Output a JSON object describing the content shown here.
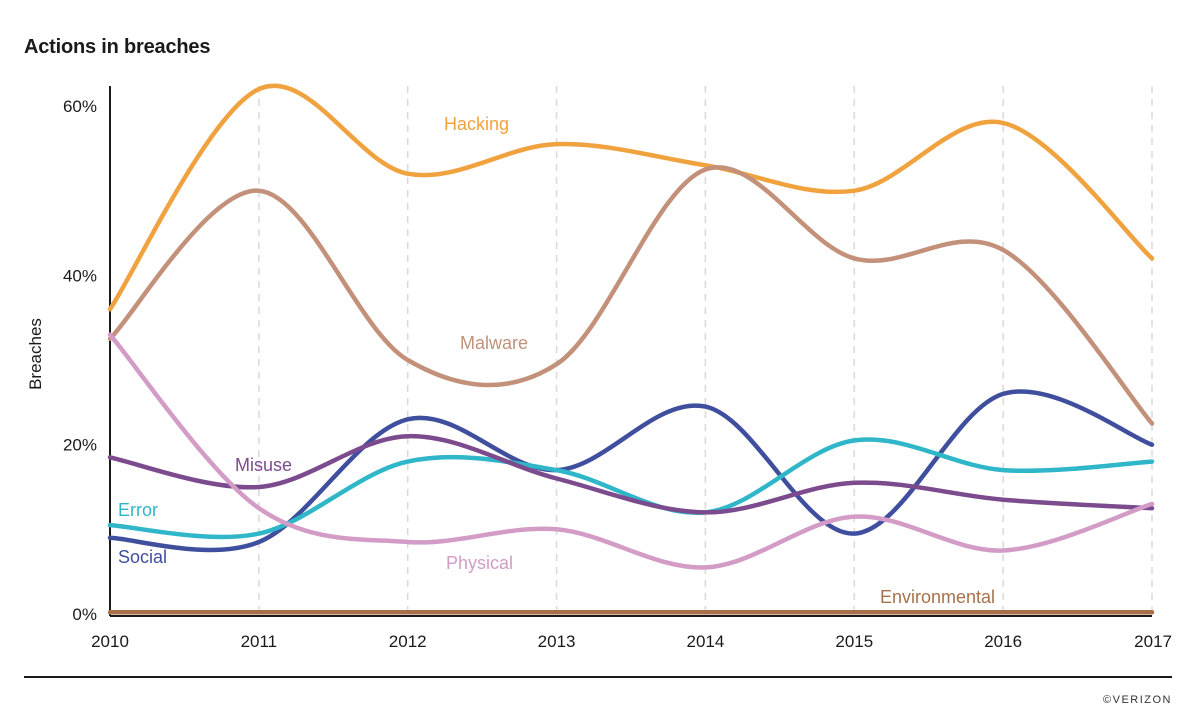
{
  "chart_data": {
    "type": "line",
    "title": "Actions in breaches",
    "xlabel": "",
    "ylabel": "Breaches",
    "x": [
      "2010",
      "2011",
      "2012",
      "2013",
      "2014",
      "2015",
      "2016",
      "2017"
    ],
    "ylim": [
      0,
      60
    ],
    "yticks": [
      0,
      20,
      40,
      60
    ],
    "ytick_labels": [
      "0%",
      "20%",
      "40%",
      "60%"
    ],
    "grid": "vertical dashed",
    "legend": "inline labels",
    "series": [
      {
        "name": "Hacking",
        "color": "#f0a23f",
        "values": [
          36,
          62,
          52,
          55.5,
          53,
          50,
          58,
          42
        ]
      },
      {
        "name": "Malware",
        "color": "#c3917a",
        "values": [
          32.5,
          50,
          30,
          29.5,
          52.5,
          42,
          43,
          22.5
        ]
      },
      {
        "name": "Social",
        "color": "#3f4f9e",
        "values": [
          9,
          8.5,
          23,
          17,
          24.5,
          9.5,
          26,
          20
        ]
      },
      {
        "name": "Error",
        "color": "#2fb6c8",
        "values": [
          10.5,
          9.5,
          18,
          17,
          12,
          20.5,
          17,
          18
        ]
      },
      {
        "name": "Misuse",
        "color": "#7b4b8e",
        "values": [
          18.5,
          15,
          21,
          16,
          12,
          15.5,
          13.5,
          12.5
        ]
      },
      {
        "name": "Physical",
        "color": "#d29cc6",
        "values": [
          33,
          12.5,
          8.5,
          10,
          5.5,
          11.5,
          7.5,
          13
        ]
      },
      {
        "name": "Environmental",
        "color": "#a7704a",
        "values": [
          0.2,
          0.2,
          0.2,
          0.2,
          0.2,
          0.2,
          0.2,
          0.2
        ]
      }
    ]
  },
  "credit": "©VERIZON"
}
